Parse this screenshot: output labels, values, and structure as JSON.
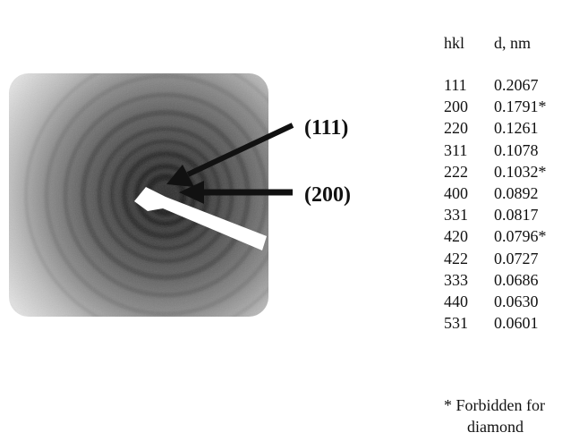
{
  "figure": {
    "labels": {
      "label_111": "(111)",
      "label_200": "(200)"
    }
  },
  "table": {
    "header": {
      "hkl": "hkl",
      "d": "d, nm"
    },
    "rows": [
      {
        "hkl": "111",
        "d": "0.2067"
      },
      {
        "hkl": "200",
        "d": "0.1791*"
      },
      {
        "hkl": "220",
        "d": "0.1261"
      },
      {
        "hkl": "311",
        "d": "0.1078"
      },
      {
        "hkl": "222",
        "d": "0.1032*"
      },
      {
        "hkl": "400",
        "d": "0.0892"
      },
      {
        "hkl": "331",
        "d": "0.0817"
      },
      {
        "hkl": "420",
        "d": "0.0796*"
      },
      {
        "hkl": "422",
        "d": "0.0727"
      },
      {
        "hkl": "333",
        "d": "0.0686"
      },
      {
        "hkl": "440",
        "d": "0.0630"
      },
      {
        "hkl": "531",
        "d": "0.0601"
      }
    ]
  },
  "footnote": {
    "line1": "* Forbidden for",
    "line2": "diamond"
  }
}
